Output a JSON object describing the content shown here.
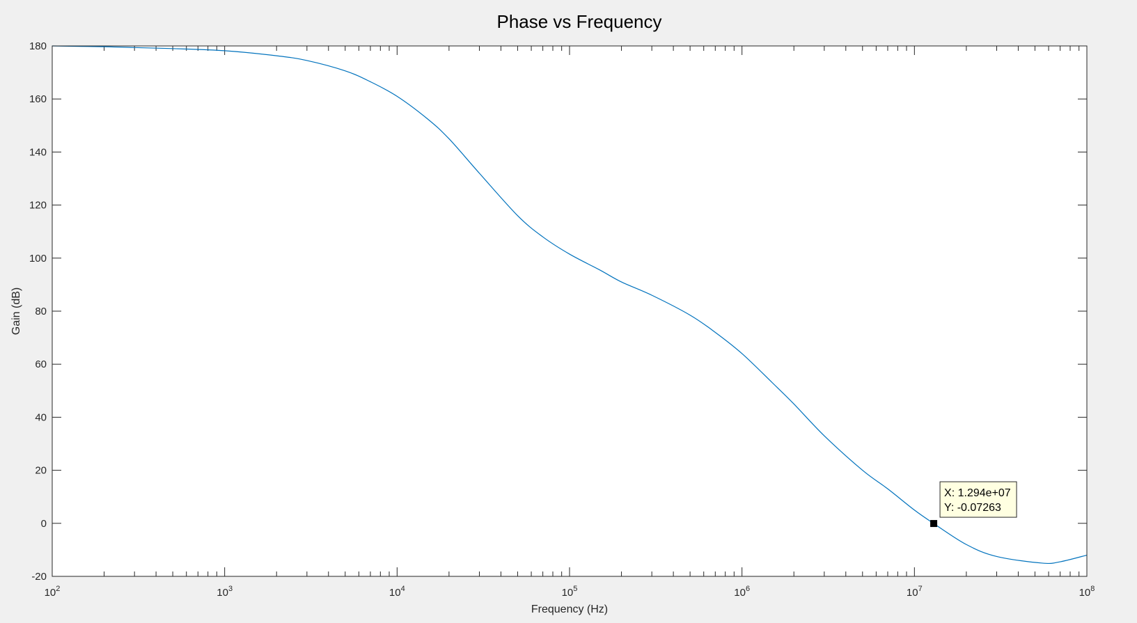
{
  "chart_data": {
    "type": "line",
    "title": "Phase vs Frequency",
    "xlabel": "Frequency (Hz)",
    "ylabel": "Gain (dB)",
    "xscale": "log",
    "xlim": [
      100,
      100000000
    ],
    "ylim": [
      -20,
      180
    ],
    "yticks": [
      -20,
      0,
      20,
      40,
      60,
      80,
      100,
      120,
      140,
      160,
      180
    ],
    "xticks": [
      {
        "value": 100,
        "base": "10",
        "exp": "2"
      },
      {
        "value": 1000,
        "base": "10",
        "exp": "3"
      },
      {
        "value": 10000,
        "base": "10",
        "exp": "4"
      },
      {
        "value": 100000,
        "base": "10",
        "exp": "5"
      },
      {
        "value": 1000000,
        "base": "10",
        "exp": "6"
      },
      {
        "value": 10000000,
        "base": "10",
        "exp": "7"
      },
      {
        "value": 100000000,
        "base": "10",
        "exp": "8"
      }
    ],
    "line_color": "#0072bd",
    "grid": false,
    "series": [
      {
        "name": "phase",
        "x": [
          100,
          200,
          300,
          500,
          1000,
          2000,
          3000,
          5000,
          7000,
          10000,
          15000,
          20000,
          30000,
          50000,
          70000,
          100000,
          150000,
          200000,
          300000,
          500000,
          700000,
          1000000,
          1500000,
          2000000,
          3000000,
          5000000,
          7000000,
          10000000,
          12940000,
          20000000,
          30000000,
          55000000,
          70000000,
          100000000
        ],
        "y": [
          180,
          179.7,
          179.4,
          179,
          178.2,
          176.3,
          174.5,
          170.6,
          166.5,
          161,
          152.5,
          145,
          132,
          116,
          108,
          101.5,
          95.5,
          91,
          86,
          78.5,
          72,
          64,
          53,
          45,
          33,
          20,
          13,
          5,
          -0.07263,
          -8,
          -12.5,
          -15,
          -14.5,
          -12
        ]
      }
    ],
    "datatip": {
      "x": 12940000,
      "y": -0.07263,
      "x_text": "X: 1.294e+07",
      "y_text": "Y: -0.07263"
    }
  }
}
